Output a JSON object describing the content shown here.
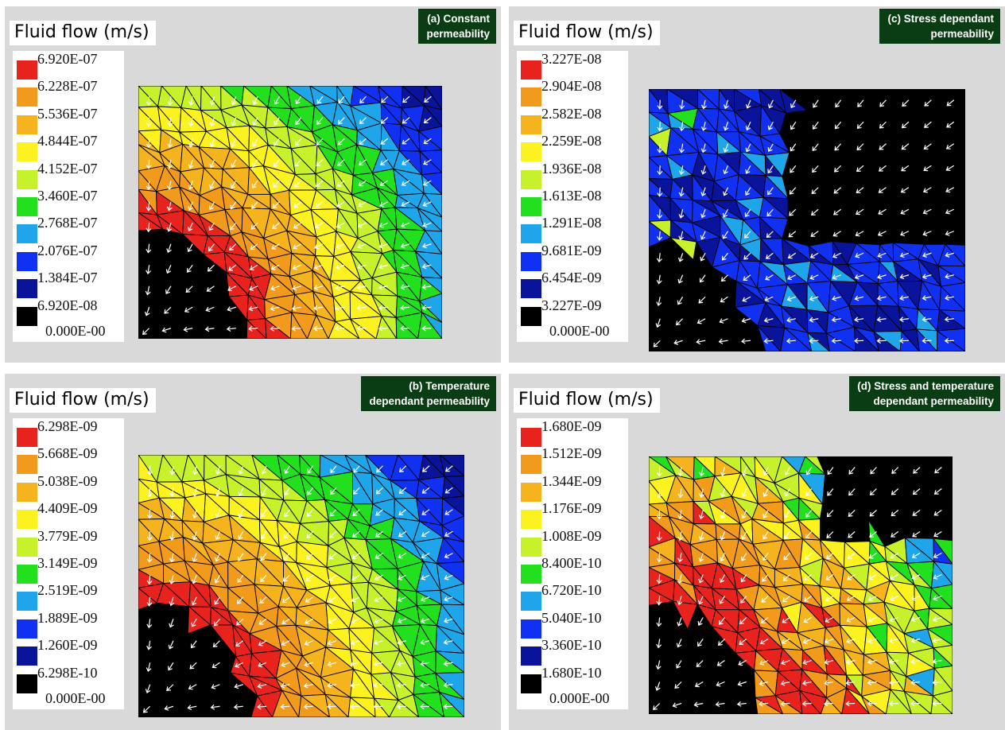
{
  "chart_data": [
    {
      "type": "heatmap",
      "panel_label": "(a) Constant\npermeability",
      "title": "Fluid flow (m/s)",
      "legend_values": [
        "6.920E-07",
        "6.228E-07",
        "5.536E-07",
        "4.844E-07",
        "4.152E-07",
        "3.460E-07",
        "2.768E-07",
        "2.076E-07",
        "1.384E-07",
        "6.920E-08"
      ],
      "legend_min": "0.000E-00",
      "colors": [
        "#e8221c",
        "#f29a1c",
        "#f5b31e",
        "#fbf21f",
        "#c7f22b",
        "#22e01e",
        "#1fa6ea",
        "#1030f2",
        "#0a149a",
        "#000000"
      ],
      "pattern": "smooth"
    },
    {
      "type": "heatmap",
      "panel_label": "(c) Stress  dependant\npermeability",
      "title": "Fluid flow (m/s)",
      "legend_values": [
        "3.227E-08",
        "2.904E-08",
        "2.582E-08",
        "2.259E-08",
        "1.936E-08",
        "1.613E-08",
        "1.291E-08",
        "9.681E-09",
        "6.454E-09",
        "3.227E-09"
      ],
      "legend_min": "0.000E-00",
      "colors": [
        "#e8221c",
        "#f29a1c",
        "#f5b31e",
        "#fbf21f",
        "#c7f22b",
        "#22e01e",
        "#1fa6ea",
        "#1030f2",
        "#0a149a",
        "#000000"
      ],
      "pattern": "stress"
    },
    {
      "type": "heatmap",
      "panel_label": "(b) Temperature\ndependant permeability",
      "title": "Fluid flow (m/s)",
      "legend_values": [
        "6.298E-09",
        "5.668E-09",
        "5.038E-09",
        "4.409E-09",
        "3.779E-09",
        "3.149E-09",
        "2.519E-09",
        "1.889E-09",
        "1.260E-09",
        "6.298E-10"
      ],
      "legend_min": "0.000E-00",
      "colors": [
        "#e8221c",
        "#f29a1c",
        "#f5b31e",
        "#fbf21f",
        "#c7f22b",
        "#22e01e",
        "#1fa6ea",
        "#1030f2",
        "#0a149a",
        "#000000"
      ],
      "pattern": "smooth"
    },
    {
      "type": "heatmap",
      "panel_label": "(d) Stress and temperature\ndependant permeability",
      "title": "Fluid flow (m/s)",
      "legend_values": [
        "1.680E-09",
        "1.512E-09",
        "1.344E-09",
        "1.176E-09",
        "1.008E-09",
        "8.400E-10",
        "6.720E-10",
        "5.040E-10",
        "3.360E-10",
        "1.680E-10"
      ],
      "legend_min": "0.000E-00",
      "colors": [
        "#e8221c",
        "#f29a1c",
        "#f5b31e",
        "#fbf21f",
        "#c7f22b",
        "#22e01e",
        "#1fa6ea",
        "#1030f2",
        "#0a149a",
        "#000000"
      ],
      "pattern": "mixed"
    }
  ]
}
